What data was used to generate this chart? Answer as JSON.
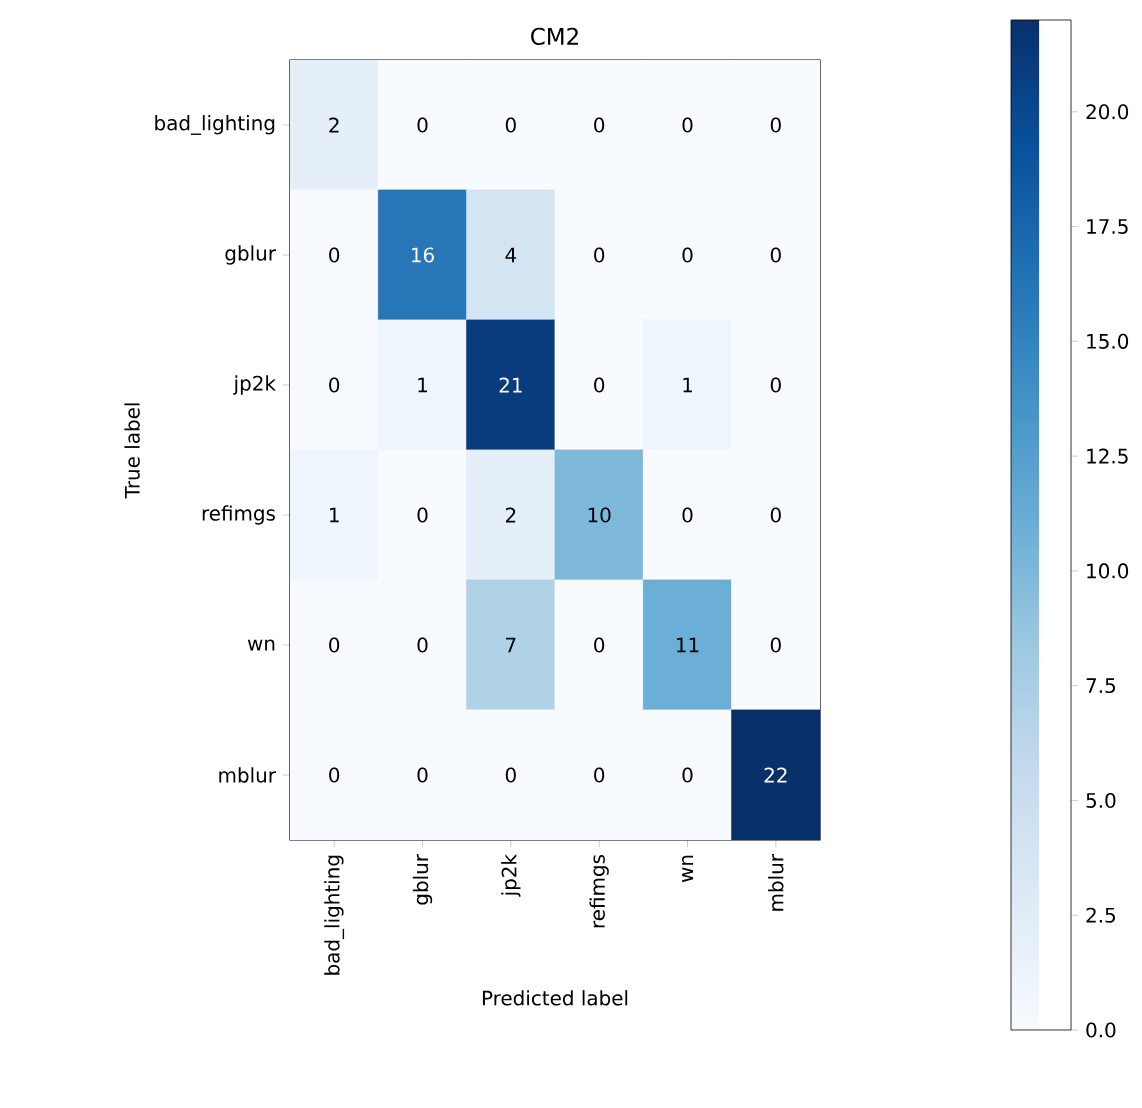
{
  "chart_data": {
    "type": "heatmap",
    "title": "CM2",
    "xlabel": "Predicted label",
    "ylabel": "True label",
    "categories": [
      "bad_lighting",
      "gblur",
      "jp2k",
      "refimgs",
      "wn",
      "mblur"
    ],
    "y_categories": [
      "bad_lighting",
      "gblur",
      "jp2k",
      "refimgs",
      "wn",
      "mblur"
    ],
    "cells": [
      [
        2,
        0,
        0,
        0,
        0,
        0
      ],
      [
        0,
        16,
        4,
        0,
        0,
        0
      ],
      [
        0,
        1,
        21,
        0,
        1,
        0
      ],
      [
        1,
        0,
        2,
        10,
        0,
        0
      ],
      [
        0,
        0,
        7,
        0,
        11,
        0
      ],
      [
        0,
        0,
        0,
        0,
        0,
        22
      ]
    ],
    "data_labels": true,
    "clim": [
      0,
      22
    ],
    "cticks": [
      {
        "value": 0,
        "label": "0.0"
      },
      {
        "value": 2.5,
        "label": "2.5"
      },
      {
        "value": 5,
        "label": "5.0"
      },
      {
        "value": 7.5,
        "label": "7.5"
      },
      {
        "value": 10,
        "label": "10.0"
      },
      {
        "value": 12.5,
        "label": "12.5"
      },
      {
        "value": 15,
        "label": "15.0"
      },
      {
        "value": 17.5,
        "label": "17.5"
      },
      {
        "value": 20,
        "label": "20.0"
      }
    ]
  }
}
